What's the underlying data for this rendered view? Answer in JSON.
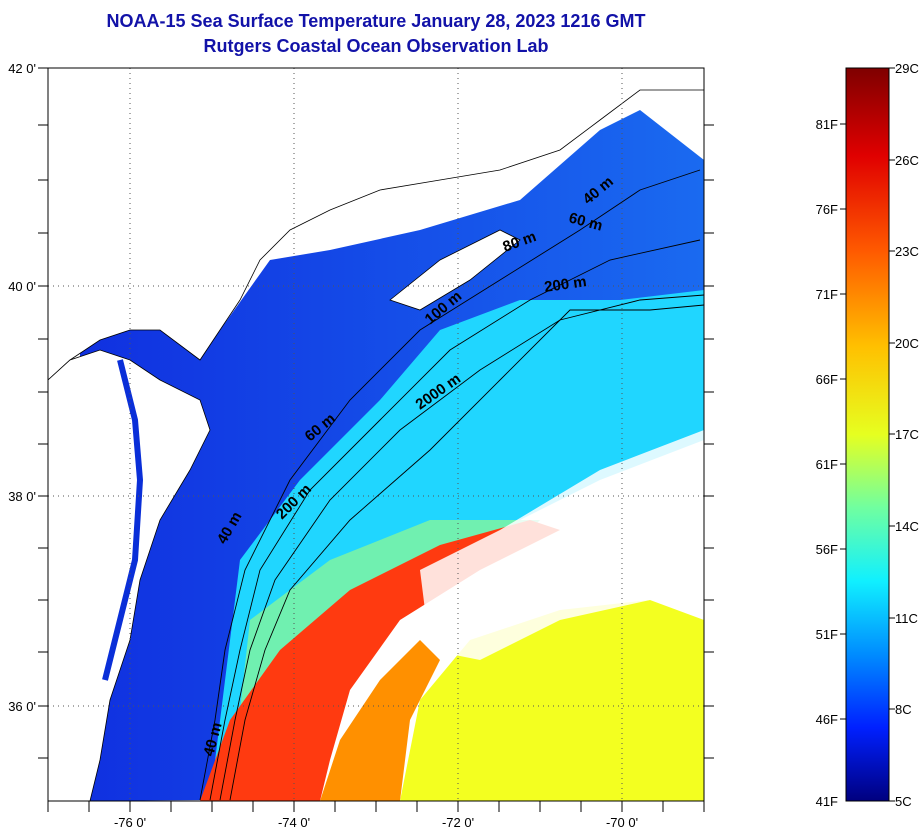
{
  "title": {
    "line1": "NOAA-15 Sea Surface Temperature January 28, 2023 1216 GMT",
    "line2": "Rutgers Coastal Ocean Observation Lab"
  },
  "map": {
    "lat_labels": [
      "42 0'",
      "40 0'",
      "38 0'",
      "36 0'"
    ],
    "lon_labels": [
      "-76 0'",
      "-74 0'",
      "-72 0'",
      "-70 0'"
    ],
    "contour_labels": [
      {
        "name": "contour-label-40m-north",
        "text": "40 m"
      },
      {
        "name": "contour-label-60m-north",
        "text": "60 m"
      },
      {
        "name": "contour-label-80m",
        "text": "80 m"
      },
      {
        "name": "contour-label-200m-north",
        "text": "200 m"
      },
      {
        "name": "contour-label-100m",
        "text": "100 m"
      },
      {
        "name": "contour-label-2000m",
        "text": "2000 m"
      },
      {
        "name": "contour-label-60m-south",
        "text": "60 m"
      },
      {
        "name": "contour-label-200m-south",
        "text": "200 m"
      },
      {
        "name": "contour-label-40m-mid",
        "text": "40 m"
      },
      {
        "name": "contour-label-40m-south",
        "text": "40 m"
      }
    ]
  },
  "colorbar": {
    "celsius": [
      "29C",
      "26C",
      "23C",
      "20C",
      "17C",
      "14C",
      "11C",
      "8C",
      "5C"
    ],
    "fahrenheit": [
      "81F",
      "76F",
      "71F",
      "66F",
      "61F",
      "56F",
      "51F",
      "46F",
      "41F"
    ],
    "colors": [
      "#00007f",
      "#0000ff",
      "#007fff",
      "#00ffff",
      "#7fff7f",
      "#ffff00",
      "#ff7f00",
      "#ff0000",
      "#7f0000"
    ]
  },
  "colors": {
    "title": "#1212a8",
    "land": "#ffffff",
    "cold_water": "#0a2fd8",
    "warm_water": "#ff3a10"
  }
}
